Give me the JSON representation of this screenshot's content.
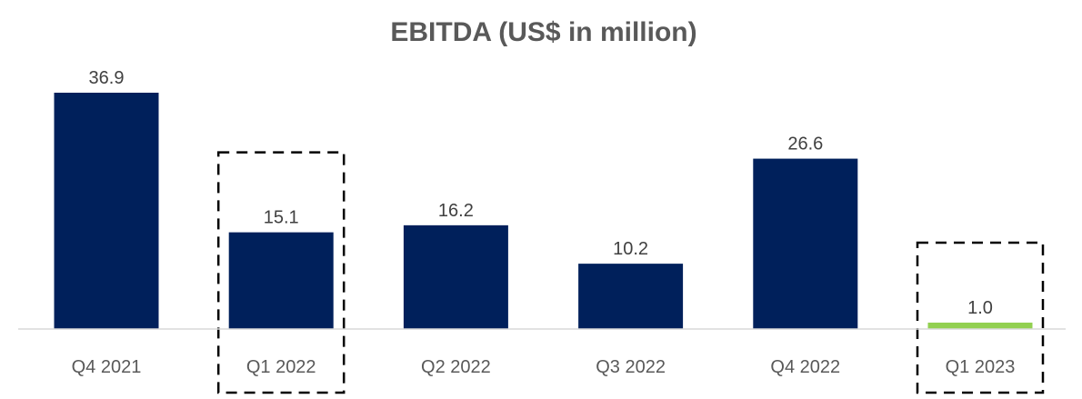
{
  "chart_data": {
    "type": "bar",
    "title": "EBITDA (US$ in million)",
    "categories": [
      "Q4 2021",
      "Q1 2022",
      "Q2 2022",
      "Q3 2022",
      "Q4 2022",
      "Q1 2023"
    ],
    "values": [
      36.9,
      15.1,
      16.2,
      10.2,
      26.6,
      1.0
    ],
    "data_labels": [
      "36.9",
      "15.1",
      "16.2",
      "10.2",
      "26.6",
      "1.0"
    ],
    "highlighted_categories": [
      "Q1 2022",
      "Q1 2023"
    ],
    "colors": {
      "bar": "#00205B",
      "bar_last": "#92D050",
      "axis": "#D9D9D9",
      "highlight_box": "#000000",
      "title": "#595959",
      "label": "#404040",
      "category": "#595959"
    },
    "xlabel": "",
    "ylabel": "",
    "gridlines": false,
    "legend": "none"
  }
}
